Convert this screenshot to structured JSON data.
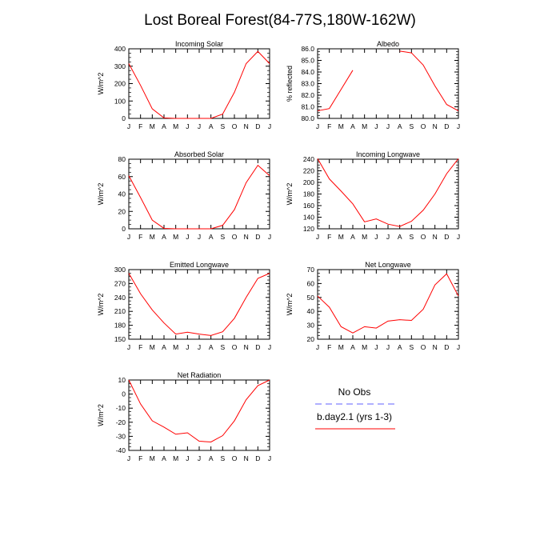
{
  "title": "Lost Boreal Forest(84-77S,180W-162W)",
  "colors": {
    "model": "#ff0000",
    "obs": "#6060ff"
  },
  "legend": {
    "obs_label": "No Obs",
    "model_label": "b.day2.1 (yrs 1-3)"
  },
  "months": [
    "J",
    "F",
    "M",
    "A",
    "M",
    "J",
    "J",
    "A",
    "S",
    "O",
    "N",
    "D",
    "J"
  ],
  "chart_data": [
    {
      "type": "line",
      "title": "Incoming Solar",
      "ylabel": "W/m^2",
      "ylim": [
        0,
        400
      ],
      "yticks": [
        0,
        100,
        200,
        300,
        400
      ],
      "ytick_labels": [
        "0",
        "100",
        "200",
        "300",
        "400"
      ],
      "series": [
        {
          "values": [
            315,
            190,
            55,
            3,
            0,
            0,
            0,
            0,
            25,
            150,
            315,
            385,
            315
          ]
        }
      ]
    },
    {
      "type": "line",
      "title": "Albedo",
      "ylabel": "% reflected",
      "ylim": [
        80.0,
        86.0
      ],
      "yticks": [
        80,
        81,
        82,
        83,
        84,
        85,
        86
      ],
      "ytick_labels": [
        "80.0",
        "81.0",
        "82.0",
        "83.0",
        "84.0",
        "85.0",
        "86.0"
      ],
      "series": [
        {
          "values": [
            80.65,
            80.85,
            82.5,
            84.15,
            null,
            null,
            null,
            85.8,
            85.65,
            84.6,
            82.8,
            81.2,
            80.65
          ]
        }
      ]
    },
    {
      "type": "line",
      "title": "Absorbed Solar",
      "ylabel": "W/m^2",
      "ylim": [
        0,
        80
      ],
      "yticks": [
        0,
        20,
        40,
        60,
        80
      ],
      "ytick_labels": [
        "0",
        "20",
        "40",
        "60",
        "80"
      ],
      "series": [
        {
          "values": [
            61,
            36,
            10,
            0.5,
            0,
            0,
            0,
            0,
            4,
            22,
            53,
            73,
            61
          ]
        }
      ]
    },
    {
      "type": "line",
      "title": "Incoming Longwave",
      "ylabel": "W/m^2",
      "ylim": [
        120,
        240
      ],
      "yticks": [
        120,
        140,
        160,
        180,
        200,
        220,
        240
      ],
      "ytick_labels": [
        "120",
        "140",
        "160",
        "180",
        "200",
        "220",
        "240"
      ],
      "series": [
        {
          "values": [
            241,
            206,
            185,
            163,
            132,
            137,
            128,
            124,
            133,
            152,
            180,
            215,
            241
          ]
        }
      ]
    },
    {
      "type": "line",
      "title": "Emitted Longwave",
      "ylabel": "W/m^2",
      "ylim": [
        150,
        300
      ],
      "yticks": [
        150,
        180,
        210,
        240,
        270,
        300
      ],
      "ytick_labels": [
        "150",
        "180",
        "210",
        "240",
        "270",
        "300"
      ],
      "series": [
        {
          "values": [
            292,
            248,
            213,
            185,
            161,
            165,
            161,
            158,
            166,
            195,
            240,
            281,
            292
          ]
        }
      ]
    },
    {
      "type": "line",
      "title": "Net Longwave",
      "ylabel": "W/m^2",
      "ylim": [
        20,
        70
      ],
      "yticks": [
        20,
        30,
        40,
        50,
        60,
        70
      ],
      "ytick_labels": [
        "20",
        "30",
        "40",
        "50",
        "60",
        "70"
      ],
      "series": [
        {
          "values": [
            51,
            43,
            29,
            24.5,
            29,
            28,
            33,
            34,
            33.5,
            41.5,
            59,
            67,
            51
          ]
        }
      ]
    },
    {
      "type": "line",
      "title": "Net Radiation",
      "ylabel": "W/m^2",
      "ylim": [
        -40,
        10
      ],
      "yticks": [
        -40,
        -30,
        -20,
        -10,
        0,
        10
      ],
      "ytick_labels": [
        "-40",
        "-30",
        "-20",
        "-10",
        "0",
        "10"
      ],
      "series": [
        {
          "values": [
            10,
            -7,
            -19,
            -23.5,
            -28.5,
            -27.5,
            -33.5,
            -34,
            -29.5,
            -19,
            -4,
            6,
            10
          ]
        }
      ]
    }
  ]
}
